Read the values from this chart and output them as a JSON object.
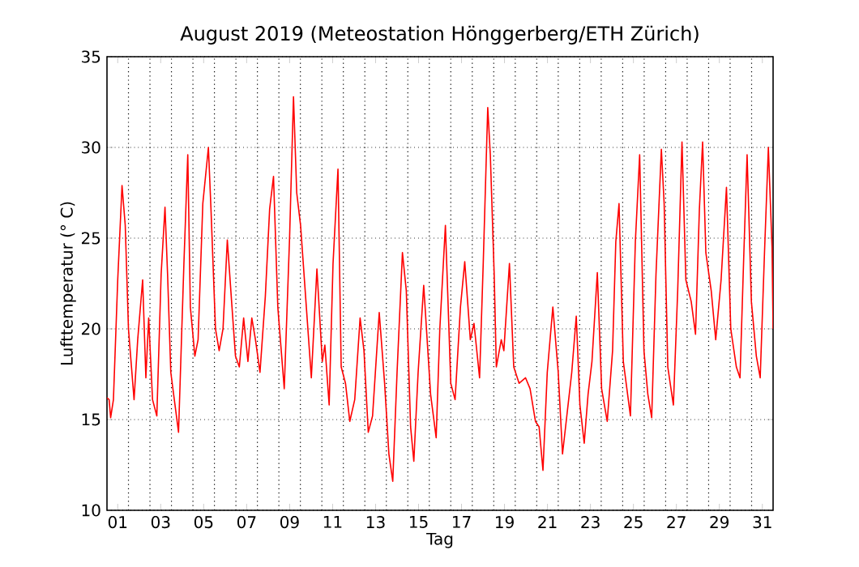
{
  "chart_data": {
    "type": "line",
    "title": "August 2019  (Meteostation Hönggerberg/ETH Zürich)",
    "xlabel": "Tag",
    "ylabel": "Lufttemperatur (° C)",
    "x": [
      0.5,
      0.6,
      0.67,
      0.8,
      1.0,
      1.2,
      1.35,
      1.5,
      1.76,
      1.93,
      2.16,
      2.31,
      2.44,
      2.62,
      2.82,
      3.02,
      3.2,
      3.32,
      3.47,
      3.83,
      4.08,
      4.26,
      4.38,
      4.59,
      4.74,
      4.96,
      5.22,
      5.34,
      5.55,
      5.72,
      5.9,
      6.1,
      6.3,
      6.48,
      6.66,
      6.86,
      7.06,
      7.24,
      7.41,
      7.62,
      7.87,
      8.07,
      8.25,
      8.45,
      8.75,
      9.0,
      9.18,
      9.33,
      9.51,
      9.76,
      10.01,
      10.27,
      10.52,
      10.64,
      10.84,
      11.02,
      11.25,
      11.4,
      11.6,
      11.8,
      12.03,
      12.28,
      12.46,
      12.66,
      12.86,
      13.17,
      13.42,
      13.62,
      13.8,
      14.0,
      14.25,
      14.43,
      14.63,
      14.78,
      14.98,
      15.24,
      15.56,
      15.82,
      15.99,
      16.25,
      16.5,
      16.7,
      16.95,
      17.15,
      17.41,
      17.58,
      17.84,
      18.01,
      18.22,
      18.34,
      18.52,
      18.62,
      18.85,
      18.97,
      19.23,
      19.43,
      19.68,
      19.98,
      20.19,
      20.44,
      20.61,
      20.79,
      20.99,
      21.25,
      21.5,
      21.7,
      21.9,
      22.13,
      22.34,
      22.51,
      22.71,
      22.89,
      23.07,
      23.32,
      23.52,
      23.78,
      24.03,
      24.18,
      24.33,
      24.53,
      24.86,
      25.09,
      25.29,
      25.49,
      25.67,
      25.85,
      26.05,
      26.3,
      26.43,
      26.6,
      26.86,
      27.06,
      27.26,
      27.44,
      27.69,
      27.89,
      28.07,
      28.22,
      28.37,
      28.62,
      28.83,
      29.08,
      29.33,
      29.53,
      29.79,
      29.96,
      30.14,
      30.29,
      30.49,
      30.72,
      30.9,
      31.1,
      31.28,
      31.45,
      31.5
    ],
    "values": [
      16.2,
      16.1,
      15.1,
      16.1,
      22.7,
      27.9,
      25.7,
      20,
      16.1,
      19.4,
      22.7,
      17.3,
      20.6,
      16.1,
      15.2,
      23,
      26.7,
      23,
      17.6,
      14.3,
      23.6,
      29.6,
      21.2,
      18.5,
      19.4,
      26.9,
      30,
      26.6,
      20,
      18.8,
      20,
      24.9,
      21.5,
      18.5,
      17.9,
      20.6,
      18.2,
      20.6,
      19.4,
      17.6,
      21.8,
      26.6,
      28.4,
      21.2,
      16.7,
      25.1,
      32.8,
      27.5,
      25.7,
      21.5,
      17.3,
      23.3,
      18.2,
      19.1,
      15.8,
      23.6,
      28.8,
      17.9,
      17,
      14.9,
      16.1,
      20.6,
      18.8,
      14.3,
      15.2,
      20.9,
      17,
      13.1,
      11.6,
      17.6,
      24.2,
      22.1,
      14.6,
      12.7,
      17.6,
      22.4,
      16.4,
      14,
      20,
      25.7,
      17,
      16.1,
      21.2,
      23.7,
      19.4,
      20.3,
      17.3,
      23.6,
      32.2,
      29.6,
      23,
      17.9,
      19.4,
      18.8,
      23.6,
      17.9,
      17,
      17.3,
      16.7,
      14.9,
      14.6,
      12.2,
      17.6,
      21.2,
      17.6,
      13.1,
      15.2,
      17.6,
      20.7,
      15.8,
      13.7,
      16.4,
      18.2,
      23.1,
      16.7,
      14.9,
      18.8,
      24.8,
      26.9,
      18.2,
      15.2,
      24.8,
      29.6,
      18.8,
      16.4,
      15.1,
      23,
      29.9,
      26.9,
      17.9,
      15.8,
      22.1,
      30.3,
      22.7,
      21.5,
      19.7,
      26.6,
      30.3,
      24.2,
      22.1,
      19.4,
      22.7,
      27.8,
      20,
      17.9,
      17.3,
      24.2,
      29.6,
      21.5,
      18.5,
      17.3,
      24.2,
      30,
      24.5,
      20
    ],
    "color": "#ff0000",
    "xlim": [
      0.5,
      31.5
    ],
    "ylim": [
      10,
      35
    ],
    "xticks": [
      {
        "value": 1,
        "label": "01"
      },
      {
        "value": 3,
        "label": "03"
      },
      {
        "value": 5,
        "label": "05"
      },
      {
        "value": 7,
        "label": "07"
      },
      {
        "value": 9,
        "label": "09"
      },
      {
        "value": 11,
        "label": "11"
      },
      {
        "value": 13,
        "label": "13"
      },
      {
        "value": 15,
        "label": "15"
      },
      {
        "value": 17,
        "label": "17"
      },
      {
        "value": 19,
        "label": "19"
      },
      {
        "value": 21,
        "label": "21"
      },
      {
        "value": 23,
        "label": "23"
      },
      {
        "value": 25,
        "label": "25"
      },
      {
        "value": 27,
        "label": "27"
      },
      {
        "value": 29,
        "label": "29"
      },
      {
        "value": 31,
        "label": "31"
      },
      {
        "value": 1.5,
        "label": null
      },
      {
        "value": 2.5,
        "label": null
      },
      {
        "value": 3.5,
        "label": null
      },
      {
        "value": 4.5,
        "label": null
      },
      {
        "value": 5.5,
        "label": null
      },
      {
        "value": 6.5,
        "label": null
      },
      {
        "value": 7.5,
        "label": null
      },
      {
        "value": 8.5,
        "label": null
      },
      {
        "value": 9.5,
        "label": null
      },
      {
        "value": 10.5,
        "label": null
      },
      {
        "value": 11.5,
        "label": null
      },
      {
        "value": 12.5,
        "label": null
      },
      {
        "value": 13.5,
        "label": null
      },
      {
        "value": 14.5,
        "label": null
      },
      {
        "value": 15.5,
        "label": null
      },
      {
        "value": 16.5,
        "label": null
      },
      {
        "value": 17.5,
        "label": null
      },
      {
        "value": 18.5,
        "label": null
      },
      {
        "value": 19.5,
        "label": null
      },
      {
        "value": 20.5,
        "label": null
      },
      {
        "value": 21.5,
        "label": null
      },
      {
        "value": 22.5,
        "label": null
      },
      {
        "value": 23.5,
        "label": null
      },
      {
        "value": 24.5,
        "label": null
      },
      {
        "value": 25.5,
        "label": null
      },
      {
        "value": 26.5,
        "label": null
      },
      {
        "value": 27.5,
        "label": null
      },
      {
        "value": 28.5,
        "label": null
      },
      {
        "value": 29.5,
        "label": null
      },
      {
        "value": 30.5,
        "label": null
      }
    ],
    "yticks": [
      10,
      15,
      20,
      25,
      30,
      35
    ],
    "grid": true
  }
}
